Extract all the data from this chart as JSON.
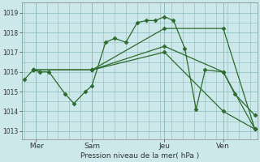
{
  "background_color": "#cce8ea",
  "grid_color": "#88bbbb",
  "line_color": "#2d6a2d",
  "ylabel": "Pression niveau de la mer( hPa )",
  "yticks": [
    1013,
    1014,
    1015,
    1016,
    1017,
    1018,
    1019
  ],
  "ylim": [
    1012.6,
    1019.5
  ],
  "xlim": [
    -0.1,
    10.3
  ],
  "xtick_labels": [
    " Mer",
    "Sam",
    "Jeu",
    "Ven"
  ],
  "xtick_positions": [
    0.5,
    3.0,
    6.2,
    8.8
  ],
  "vlines": [
    0.5,
    3.0,
    6.2,
    8.8
  ],
  "line1_x": [
    0.0,
    0.4,
    0.7,
    1.1,
    1.8,
    2.2,
    2.7,
    3.0,
    3.6,
    4.0,
    4.5,
    5.0,
    5.4,
    5.8,
    6.2,
    6.6,
    7.1,
    7.6,
    8.0,
    8.8,
    9.3,
    10.2
  ],
  "line1_y": [
    1015.6,
    1016.1,
    1016.0,
    1016.0,
    1014.9,
    1014.4,
    1015.0,
    1015.3,
    1017.5,
    1017.7,
    1017.5,
    1018.5,
    1018.6,
    1018.6,
    1018.8,
    1018.6,
    1017.2,
    1014.1,
    1016.1,
    1016.0,
    1014.9,
    1013.8
  ],
  "line2_x": [
    0.4,
    3.0,
    6.2,
    8.8,
    10.2
  ],
  "line2_y": [
    1016.1,
    1016.1,
    1018.2,
    1018.2,
    1013.1
  ],
  "line3_x": [
    0.4,
    3.0,
    6.2,
    8.8,
    10.2
  ],
  "line3_y": [
    1016.1,
    1016.1,
    1017.3,
    1016.0,
    1013.1
  ],
  "line4_x": [
    0.4,
    3.0,
    6.2,
    8.8,
    10.2
  ],
  "line4_y": [
    1016.1,
    1016.1,
    1017.0,
    1014.0,
    1013.1
  ]
}
